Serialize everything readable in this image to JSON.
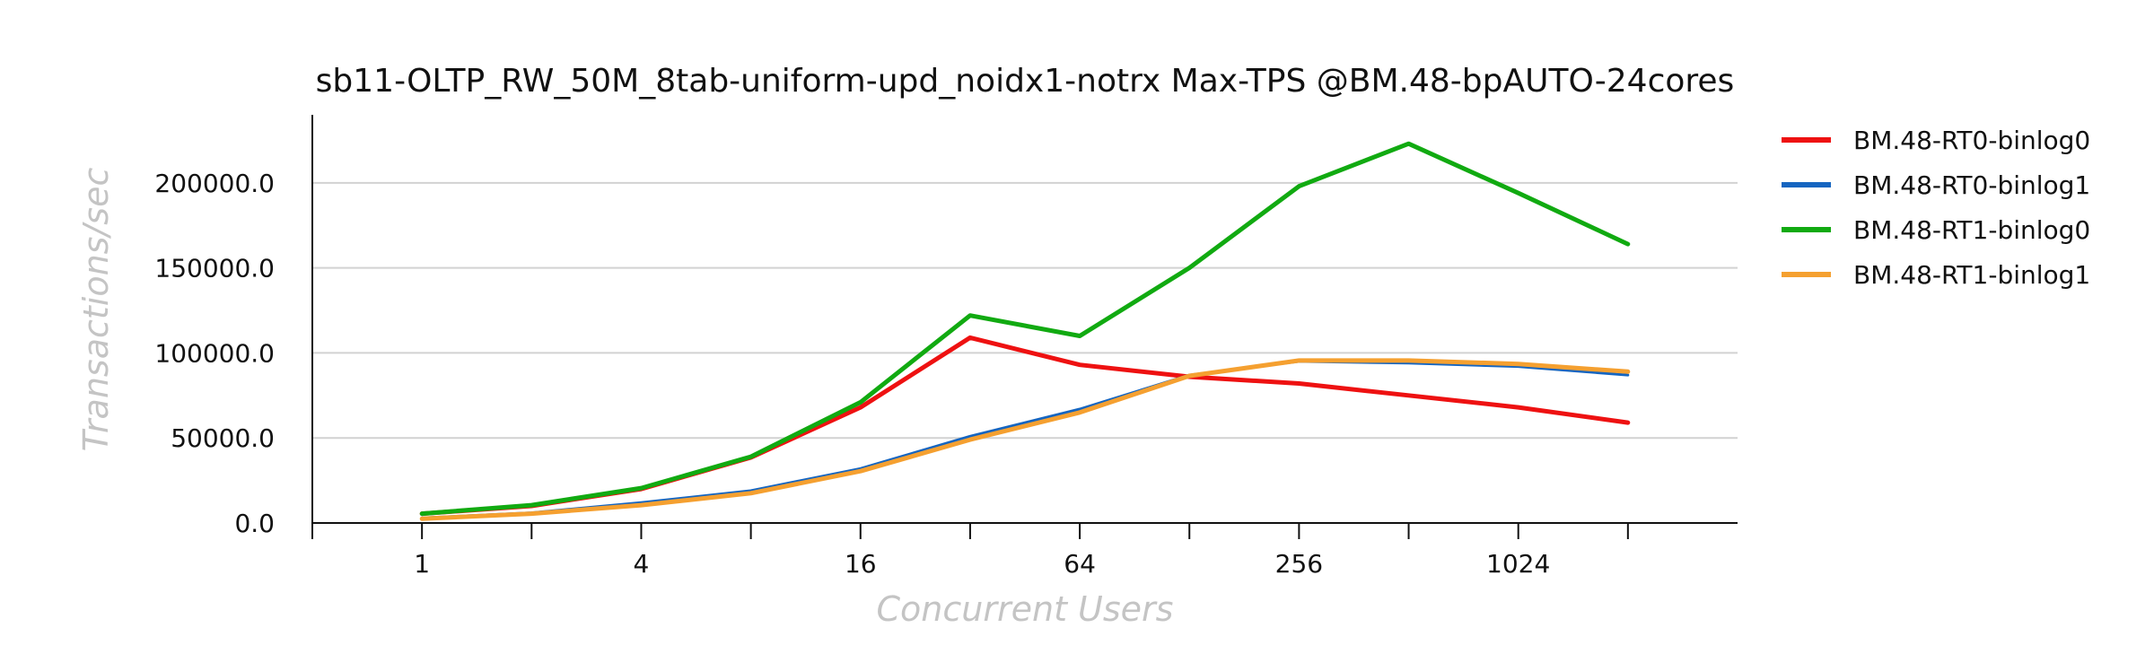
{
  "chart_data": {
    "type": "line",
    "title": "sb11-OLTP_RW_50M_8tab-uniform-upd_noidx1-notrx Max-TPS @BM.48-bpAUTO-24cores",
    "xlabel": "Concurrent Users",
    "ylabel": "Transactions/sec",
    "x_scale": "log2",
    "x": [
      1,
      2,
      4,
      8,
      16,
      32,
      64,
      128,
      256,
      512,
      1024,
      2048
    ],
    "xlim": [
      0.5,
      4096
    ],
    "x_ticks": [
      0.5,
      1,
      2,
      4,
      8,
      16,
      32,
      64,
      128,
      256,
      512,
      1024,
      2048
    ],
    "x_tick_labels": [
      {
        "value": 1,
        "label": "1"
      },
      {
        "value": 4,
        "label": "4"
      },
      {
        "value": 16,
        "label": "16"
      },
      {
        "value": 64,
        "label": "64"
      },
      {
        "value": 256,
        "label": "256"
      },
      {
        "value": 1024,
        "label": "1024"
      }
    ],
    "ylim": [
      0,
      240000
    ],
    "y_ticks": [
      {
        "value": 0,
        "label": "0.0"
      },
      {
        "value": 50000,
        "label": "50000.0"
      },
      {
        "value": 100000,
        "label": "100000.0"
      },
      {
        "value": 150000,
        "label": "150000.0"
      },
      {
        "value": 200000,
        "label": "200000.0"
      }
    ],
    "grid": "horizontal",
    "legend_position": "right",
    "series": [
      {
        "name": "BM.48-RT0-binlog0",
        "color": "#ee1111",
        "width": 5,
        "values": [
          5500,
          10000,
          20000,
          38500,
          68000,
          109000,
          93000,
          86000,
          82000,
          75000,
          68000,
          59000
        ]
      },
      {
        "name": "BM.48-RT0-binlog1",
        "color": "#1565c0",
        "width": 3,
        "values": [
          3000,
          6000,
          12000,
          19000,
          32000,
          51000,
          67000,
          87000,
          95000,
          94000,
          92000,
          87000
        ]
      },
      {
        "name": "BM.48-RT1-binlog0",
        "color": "#11aa11",
        "width": 5,
        "values": [
          5500,
          10500,
          20500,
          39000,
          71000,
          122000,
          110000,
          150000,
          198000,
          223000,
          194000,
          164000
        ]
      },
      {
        "name": "BM.48-RT1-binlog1",
        "color": "#f5a030",
        "width": 5,
        "values": [
          2500,
          5500,
          10500,
          17500,
          30500,
          49000,
          65000,
          86500,
          95500,
          95500,
          93500,
          89000
        ]
      }
    ]
  }
}
